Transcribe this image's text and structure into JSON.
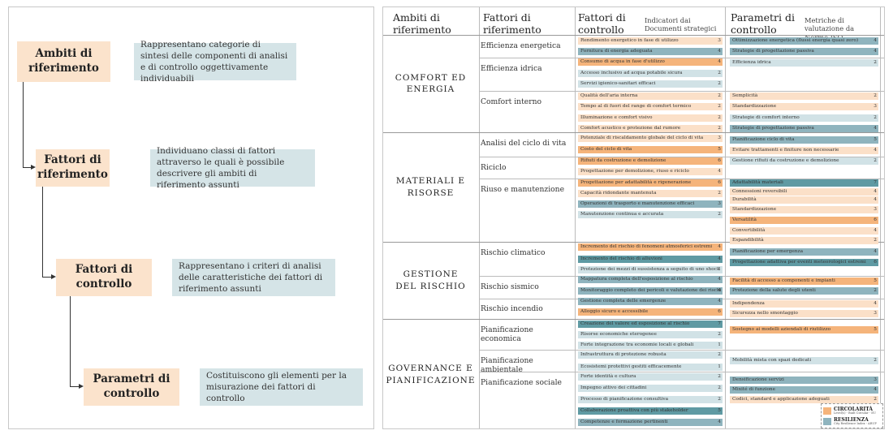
{
  "colors": {
    "orange": "#f5b47b",
    "orange_light": "#fbe0c8",
    "blue": "#8fb4be",
    "blue_light": "#d1e2e6",
    "teal": "#5f9aa3"
  },
  "left": {
    "items": [
      {
        "title": "Ambiti di riferimento",
        "desc": "Rappresentano categorie di sintesi delle componenti di analisi e di controllo oggettivamente individuabili"
      },
      {
        "title": "Fattori di riferimento",
        "desc": "Individuano classi di fattori attraverso le quali è possibile descrivere gli ambiti di riferimento assunti"
      },
      {
        "title": "Fattori di controllo",
        "desc": "Rappresentano i criteri di analisi delle caratteristiche dei fattori di riferimento assunti"
      },
      {
        "title": "Parametri di controllo",
        "desc": "Costituiscono gli elementi per la misurazione dei fattori di controllo"
      }
    ]
  },
  "header": {
    "col1": "Ambiti di riferimento",
    "col2": "Fattori di riferimento",
    "col3": "Fattori di controllo",
    "col3_sub": "Indicatori dai Documenti strategici",
    "col4": "Parametri di controllo",
    "col4_sub": "Metriche di valutazione da Norme ISO"
  },
  "ambiti": [
    {
      "label": "COMFORT ED\nENERGIA"
    },
    {
      "label": "MATERIALI E\nRISORSE"
    },
    {
      "label": "GESTIONE\nDEL RISCHIO"
    },
    {
      "label": "GOVERNANCE E\nPIANIFICAZIONE"
    }
  ],
  "fattori": [
    {
      "label": "Efficienza energetica"
    },
    {
      "label": "Efficienza idrica"
    },
    {
      "label": "Comfort interno"
    },
    {
      "label": "Analisi del ciclo di vita"
    },
    {
      "label": "Riciclo"
    },
    {
      "label": "Riuso e manutenzione"
    },
    {
      "label": "Rischio climatico"
    },
    {
      "label": "Rischio sismico"
    },
    {
      "label": "Rischio incendio"
    },
    {
      "label": "Pianificazione economica"
    },
    {
      "label": "Pianificazione ambientale"
    },
    {
      "label": "Pianificazione sociale"
    }
  ],
  "indicatori": [
    {
      "label": "Rendimento energetico in fase di utilizzo",
      "score": "3",
      "color": "orange_light"
    },
    {
      "label": "Fornitura di energia adeguata",
      "score": "4",
      "color": "blue"
    },
    {
      "label": "Consumo di acqua in fase d'utilizzo",
      "score": "4",
      "color": "orange"
    },
    {
      "label": "Accesso inclusivo ad acqua potabile sicura",
      "score": "2",
      "color": "blue_light"
    },
    {
      "label": "Servizi igienico-sanitari efficaci",
      "score": "2",
      "color": "blue_light"
    },
    {
      "label": "Qualità dell'aria interna",
      "score": "2",
      "color": "orange_light"
    },
    {
      "label": "Tempo al di fuori del range di comfort termico",
      "score": "2",
      "color": "orange_light"
    },
    {
      "label": "Illuminazione e comfort visivo",
      "score": "2",
      "color": "orange_light"
    },
    {
      "label": "Comfort acustico e protezione dal rumore",
      "score": "2",
      "color": "orange_light"
    },
    {
      "label": "Potenziale di riscaldamento globale del ciclo di vita",
      "score": "3",
      "color": "orange_light"
    },
    {
      "label": "Costo del ciclo di vita",
      "score": "5",
      "color": "orange"
    },
    {
      "label": "Rifiuti da costruzione e demolizione",
      "score": "6",
      "color": "orange"
    },
    {
      "label": "Progettazione per demolizione, riuso e riciclo",
      "score": "4",
      "color": "orange_light"
    },
    {
      "label": "Progettazione per adattabilità e rigenerazione",
      "score": "6",
      "color": "orange"
    },
    {
      "label": "Capacità ridondante mantenuta",
      "score": "2",
      "color": "orange_light"
    },
    {
      "label": "Operazioni di trasporto e manutenzione efficaci",
      "score": "3",
      "color": "blue"
    },
    {
      "label": "Manutenzione continua e accurata",
      "score": "2",
      "color": "blue_light"
    },
    {
      "label": "Incremento del rischio di fenomeni atmosferici estremi",
      "score": "4",
      "color": "orange"
    },
    {
      "label": "Incremento del rischio di alluvioni",
      "score": "4",
      "color": "teal"
    },
    {
      "label": "Protezione dei mezzi di sussistenza a seguito di uno shock",
      "score": "1",
      "color": "blue_light"
    },
    {
      "label": "Mappatura completa dell'esposizione al rischio",
      "score": "4",
      "color": "blue"
    },
    {
      "label": "Monitoraggio completo dei pericoli e valutazione dei rischi",
      "score": "4",
      "color": "blue"
    },
    {
      "label": "Gestione completa delle emergenze",
      "score": "4",
      "color": "blue"
    },
    {
      "label": "Alloggio sicuro e accessibile",
      "score": "6",
      "color": "orange"
    },
    {
      "label": "Creazione del valore ed esposizione al rischio",
      "score": "7",
      "color": "teal"
    },
    {
      "label": "Risorse economiche eterogenee",
      "score": "2",
      "color": "blue_light"
    },
    {
      "label": "Forte integrazione tra economie locali e globali",
      "score": "1",
      "color": "blue_light"
    },
    {
      "label": "Infrastruttura di protezione robusta",
      "score": "2",
      "color": "blue_light"
    },
    {
      "label": "Ecosistemi protettivi gestiti efficacemente",
      "score": "1",
      "color": "blue_light"
    },
    {
      "label": "Forte identità e cultura",
      "score": "2",
      "color": "blue_light"
    },
    {
      "label": "Impegno attivo dei cittadini",
      "score": "2",
      "color": "blue_light"
    },
    {
      "label": "Processo di pianificazione consultiva",
      "score": "2",
      "color": "blue_light"
    },
    {
      "label": "Collaborazione proattiva con più stakeholder",
      "score": "5",
      "color": "teal"
    },
    {
      "label": "Competenze e formazione pertinenti",
      "score": "4",
      "color": "blue"
    }
  ],
  "metriche": [
    {
      "label": "Ottimizzazione energetica (flussi energia quasi zero)",
      "score": "4",
      "color": "blue"
    },
    {
      "label": "Strategie di progettazione passiva",
      "score": "4",
      "color": "blue"
    },
    {
      "label": "Efficienza idrica",
      "score": "2",
      "color": "blue_light"
    },
    {
      "label": "Semplicità",
      "score": "2",
      "color": "orange_light"
    },
    {
      "label": "Standardizzazione",
      "score": "3",
      "color": "orange_light"
    },
    {
      "label": "Strategie di comfort interno",
      "score": "2",
      "color": "blue_light"
    },
    {
      "label": "Strategie di progettazione passiva",
      "score": "4",
      "color": "blue"
    },
    {
      "label": "Pianificazione ciclo di vita",
      "score": "5",
      "color": "blue"
    },
    {
      "label": "Evitare trattamenti e finiture non necessarie",
      "score": "4",
      "color": "orange_light"
    },
    {
      "label": "Gestione rifiuti da costruzione e demolizione",
      "score": "2",
      "color": "blue_light"
    },
    {
      "label": "Adattabilità materiali",
      "score": "7",
      "color": "teal"
    },
    {
      "label": "Connessioni reversibili",
      "score": "4",
      "color": "orange_light"
    },
    {
      "label": "Durabilità",
      "score": "4",
      "color": "orange_light"
    },
    {
      "label": "Standardizzazione",
      "score": "3",
      "color": "orange_light"
    },
    {
      "label": "Versatilità",
      "score": "6",
      "color": "orange"
    },
    {
      "label": "Convertibilità",
      "score": "4",
      "color": "orange_light"
    },
    {
      "label": "Espandibilità",
      "score": "2",
      "color": "orange_light"
    },
    {
      "label": "Pianificazione per emergenza",
      "score": "4",
      "color": "blue"
    },
    {
      "label": "Progettazione adattiva per eventi meteorologici estremi",
      "score": "6",
      "color": "teal"
    },
    {
      "label": "Facilità di accesso a componenti e impianti",
      "score": "5",
      "color": "orange"
    },
    {
      "label": "Protezione della salute degli utenti",
      "score": "2",
      "color": "blue"
    },
    {
      "label": "Indipendenza",
      "score": "4",
      "color": "orange_light"
    },
    {
      "label": "Sicurezza nello smontaggio",
      "score": "3",
      "color": "orange_light"
    },
    {
      "label": "Sostegno ai modelli aziendali di riutilizzo",
      "score": "5",
      "color": "orange"
    },
    {
      "label": "Mobilità mista con spazi dedicati",
      "score": "2",
      "color": "blue_light"
    },
    {
      "label": "Densificazione servizi",
      "score": "3",
      "color": "blue"
    },
    {
      "label": "Mixité di funzione",
      "score": "4",
      "color": "blue"
    },
    {
      "label": "Codici, standard e applicazione adeguati",
      "score": "2",
      "color": "orange_light"
    }
  ],
  "legend": [
    {
      "title": "CIRCOLARITÀ",
      "sub": "Level(s) - Built Circular - EU",
      "color": "orange"
    },
    {
      "title": "RESILIENZA",
      "sub": "City Resilience Index - ARUP",
      "color": "blue"
    }
  ]
}
